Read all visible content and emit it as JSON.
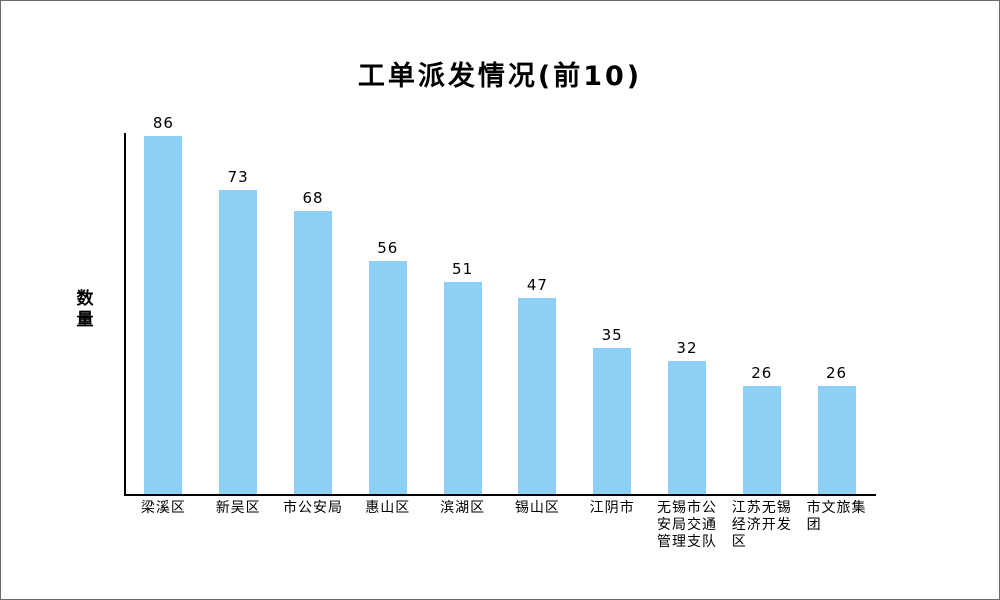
{
  "chart_data": {
    "type": "bar",
    "title": "工单派发情况(前10)",
    "ylabel": "数量",
    "categories": [
      "梁溪区",
      "新吴区",
      "市公安局",
      "惠山区",
      "滨湖区",
      "锡山区",
      "江阴市",
      "无锡市公\n安局交通\n管理支队",
      "江苏无锡\n经济开发\n区",
      "市文旅集\n团"
    ],
    "values": [
      86,
      73,
      68,
      56,
      51,
      47,
      35,
      32,
      26,
      26
    ],
    "ylim": [
      0,
      86.5
    ],
    "grid": false,
    "legend_position": "none",
    "colors": {
      "bar_fill": "#8CD0F5",
      "axis": "#000000",
      "text": "#000000",
      "frame_border": "#6B6B6B",
      "background": "#FFFFFF"
    }
  }
}
